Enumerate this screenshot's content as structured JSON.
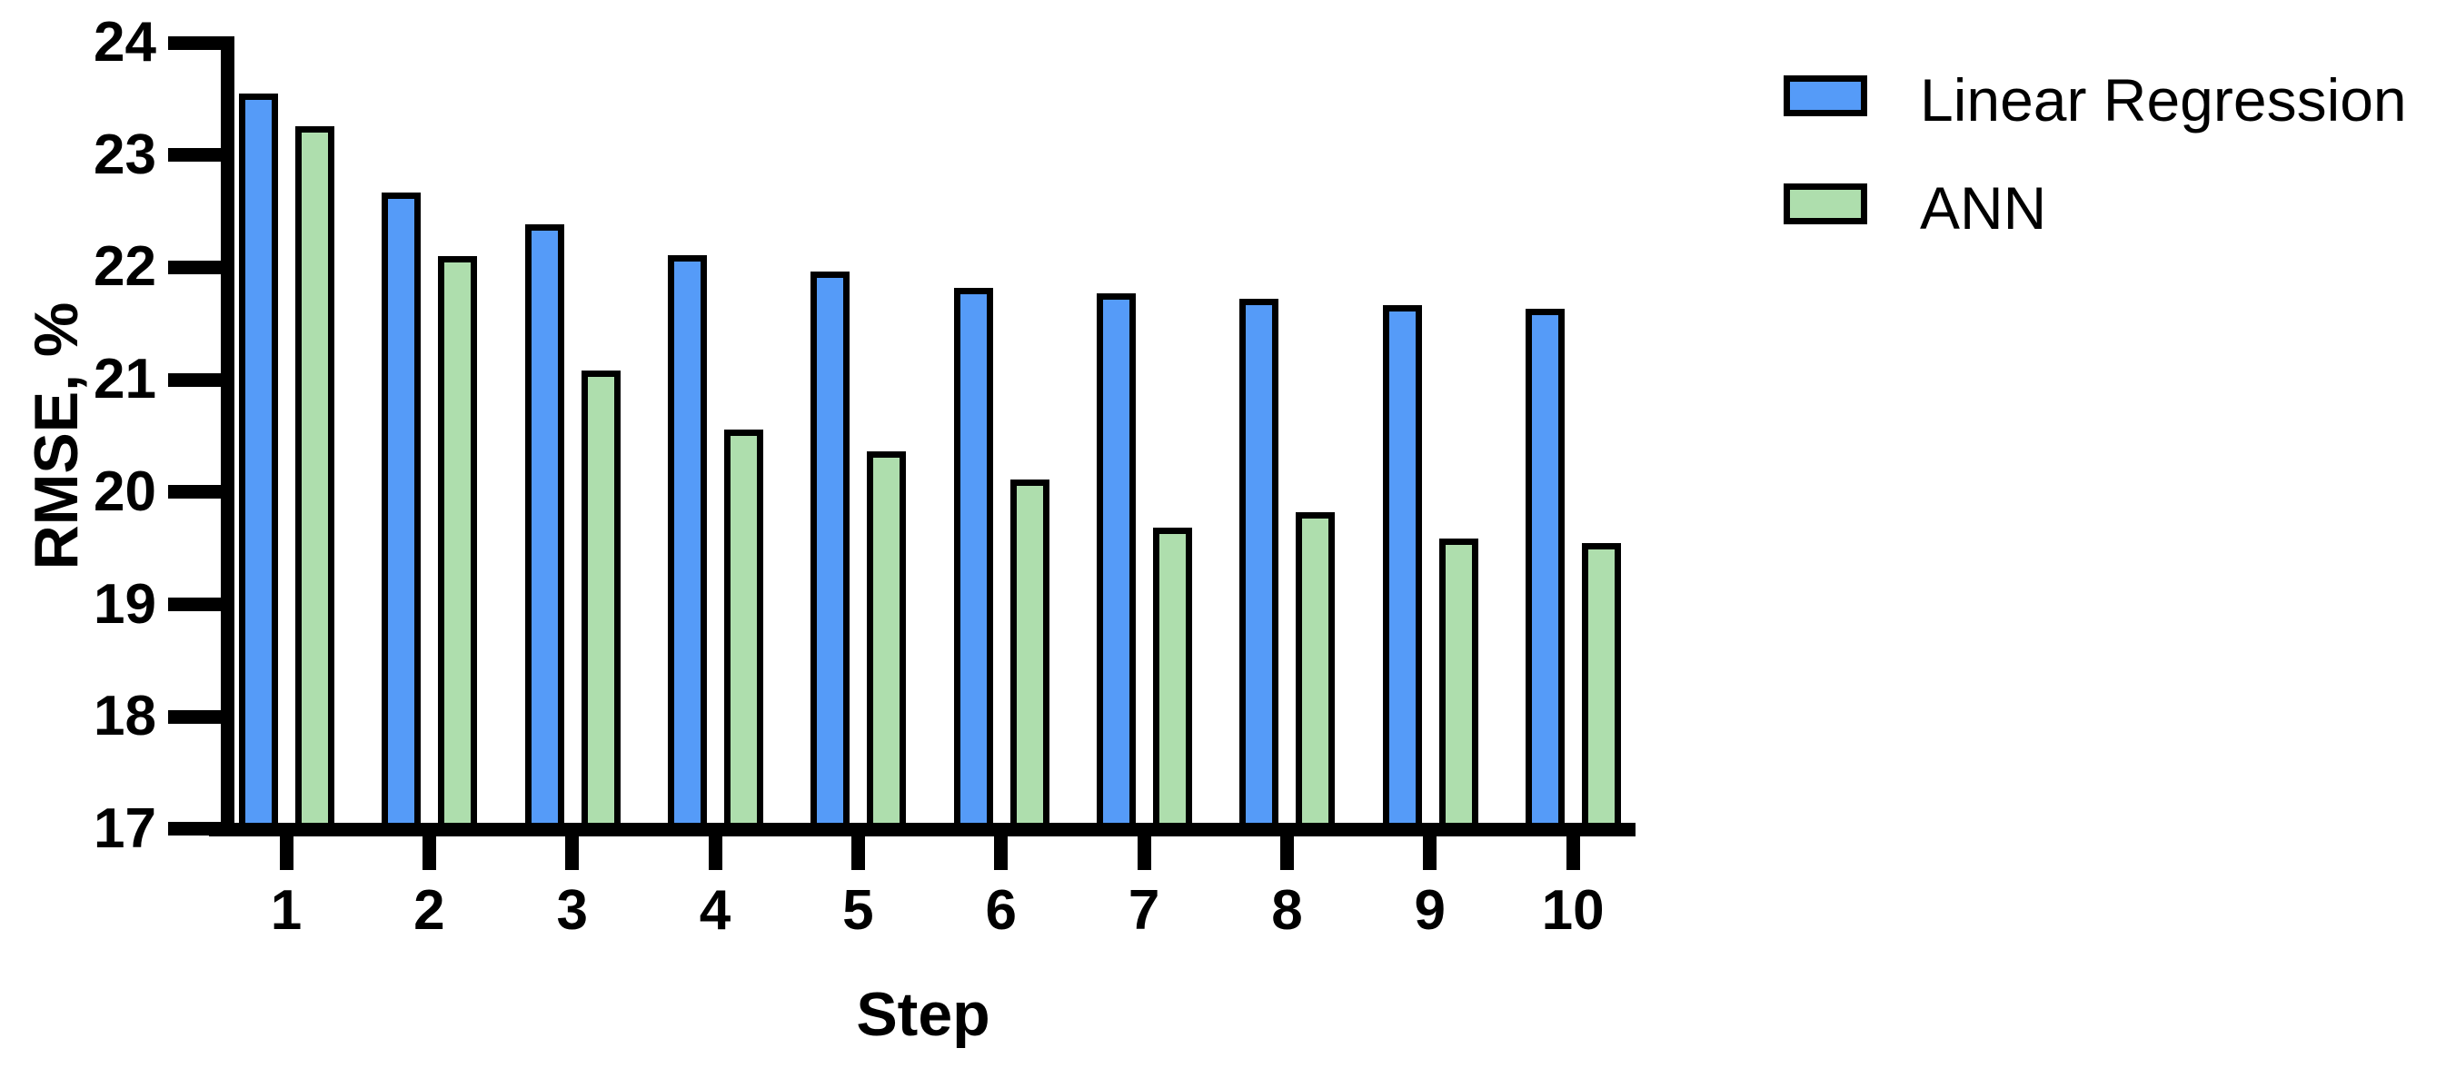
{
  "chart_data": {
    "type": "bar",
    "title": "",
    "xlabel": "Step",
    "ylabel": "RMSE, %",
    "ylim": [
      17,
      24
    ],
    "yticks": [
      24,
      23,
      22,
      21,
      20,
      19,
      18,
      17
    ],
    "grid": "off",
    "legend_position": "top-right",
    "categories": [
      "1",
      "2",
      "3",
      "4",
      "5",
      "6",
      "7",
      "8",
      "9",
      "10"
    ],
    "series": [
      {
        "name": "Linear Regression",
        "color": "#559BF8",
        "values": [
          23.55,
          22.67,
          22.38,
          22.11,
          21.96,
          21.82,
          21.77,
          21.72,
          21.66,
          21.63
        ]
      },
      {
        "name": "ANN",
        "color": "#AEDEAD",
        "values": [
          23.26,
          22.1,
          21.08,
          20.56,
          20.36,
          20.11,
          19.68,
          19.82,
          19.59,
          19.55
        ]
      }
    ],
    "outline_color": "#000000"
  }
}
